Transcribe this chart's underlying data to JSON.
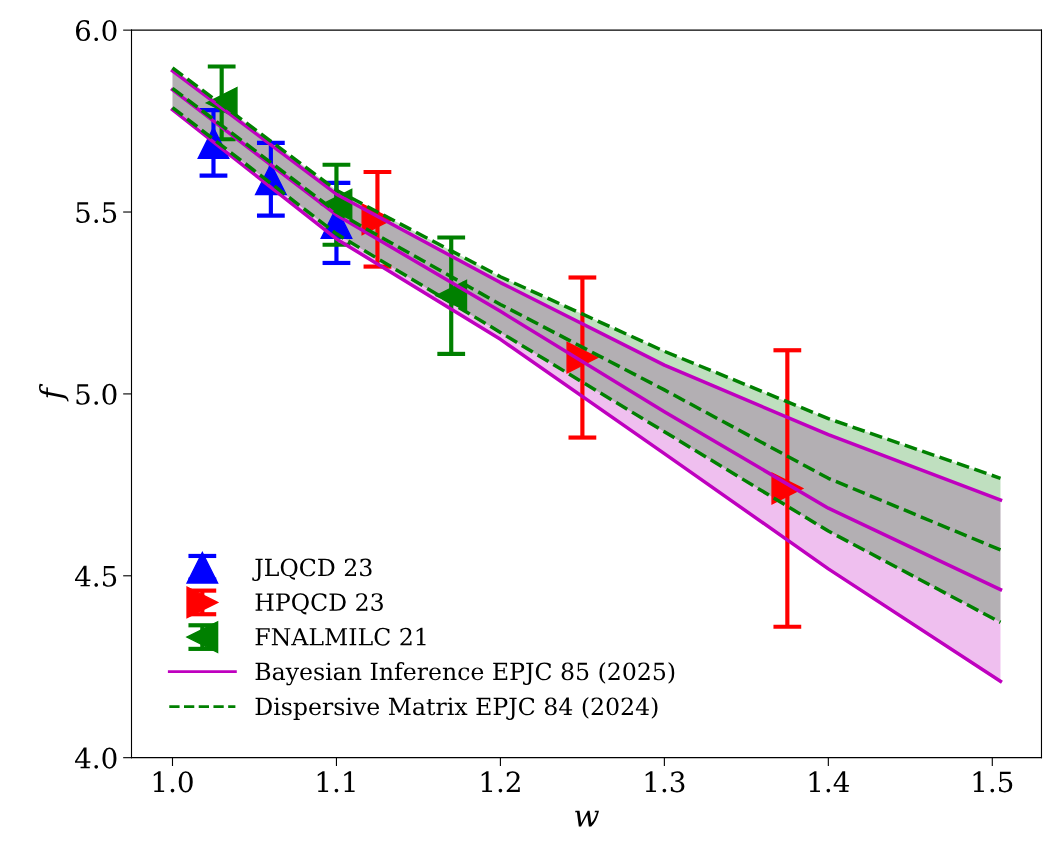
{
  "chart_data": {
    "type": "scatter",
    "xlabel": "w",
    "ylabel": "f",
    "xlim": [
      0.975,
      1.53
    ],
    "ylim": [
      4.0,
      6.0
    ],
    "xticks": [
      {
        "value": 1.0,
        "label": "1.0"
      },
      {
        "value": 1.1,
        "label": "1.1"
      },
      {
        "value": 1.2,
        "label": "1.2"
      },
      {
        "value": 1.3,
        "label": "1.3"
      },
      {
        "value": 1.4,
        "label": "1.4"
      },
      {
        "value": 1.5,
        "label": "1.5"
      }
    ],
    "yticks": [
      {
        "value": 4.0,
        "label": "4.0"
      },
      {
        "value": 4.5,
        "label": "4.5"
      },
      {
        "value": 5.0,
        "label": "5.0"
      },
      {
        "value": 5.5,
        "label": "5.5"
      },
      {
        "value": 6.0,
        "label": "6.0"
      }
    ],
    "grid": false,
    "legend": "bottom left",
    "series": [
      {
        "name": "JLQCD 23",
        "color": "#0000ff",
        "marker": "triangle-up",
        "x": [
          1.025,
          1.06,
          1.1
        ],
        "values": [
          5.69,
          5.59,
          5.47
        ],
        "errors": [
          0.09,
          0.1,
          0.11
        ]
      },
      {
        "name": "HPQCD 23",
        "color": "#ff0000",
        "marker": "triangle-right",
        "x": [
          1.125,
          1.25,
          1.375
        ],
        "values": [
          5.48,
          5.1,
          4.74
        ],
        "errors": [
          0.13,
          0.22,
          0.38
        ]
      },
      {
        "name": "FNALMILC 21",
        "color": "#008000",
        "marker": "triangle-left",
        "x": [
          1.03,
          1.1,
          1.17
        ],
        "values": [
          5.8,
          5.52,
          5.27
        ],
        "errors": [
          0.1,
          0.11,
          0.16
        ]
      },
      {
        "name": "Bayesian Inference EPJC 85 (2025)",
        "type": "line",
        "color": "#bf00bf",
        "line_style": "solid",
        "x": [
          1.0,
          1.1,
          1.2,
          1.3,
          1.4,
          1.505
        ],
        "values": [
          5.836,
          5.492,
          5.227,
          4.951,
          4.686,
          4.462
        ],
        "lower": [
          5.781,
          5.426,
          5.15,
          4.836,
          4.519,
          4.21
        ],
        "upper": [
          5.888,
          5.549,
          5.306,
          5.079,
          4.888,
          4.708
        ]
      },
      {
        "type": "line",
        "color": "#bf00bf",
        "line_style": "solid",
        "x": [
          1.0,
          1.1,
          1.2,
          1.3,
          1.4,
          1.505
        ],
        "values": [
          5.781,
          5.426,
          5.15,
          4.836,
          4.519,
          4.21
        ]
      },
      {
        "type": "line",
        "color": "#bf00bf",
        "line_style": "solid",
        "x": [
          1.0,
          1.1,
          1.2,
          1.3,
          1.4,
          1.505
        ],
        "values": [
          5.888,
          5.549,
          5.306,
          5.079,
          4.888,
          4.708
        ]
      },
      {
        "name": "Dispersive Matrix EPJC 84 (2024)",
        "type": "line",
        "color": "#008000",
        "line_style": "dashed",
        "x": [
          1.0,
          1.1,
          1.2,
          1.3,
          1.4,
          1.505
        ],
        "values": [
          5.84,
          5.5,
          5.246,
          5.011,
          4.768,
          4.571
        ],
        "lower": [
          5.787,
          5.44,
          5.169,
          4.896,
          4.623,
          4.372
        ],
        "upper": [
          5.896,
          5.56,
          5.322,
          5.117,
          4.932,
          4.768
        ]
      },
      {
        "type": "line",
        "color": "#008000",
        "line_style": "dashed",
        "x": [
          1.0,
          1.1,
          1.2,
          1.3,
          1.4,
          1.505
        ],
        "values": [
          5.787,
          5.44,
          5.169,
          4.896,
          4.623,
          4.372
        ]
      },
      {
        "type": "line",
        "color": "#008000",
        "line_style": "dashed",
        "x": [
          1.0,
          1.1,
          1.2,
          1.3,
          1.4,
          1.505
        ],
        "values": [
          5.896,
          5.56,
          5.322,
          5.117,
          4.932,
          4.768
        ]
      }
    ]
  }
}
